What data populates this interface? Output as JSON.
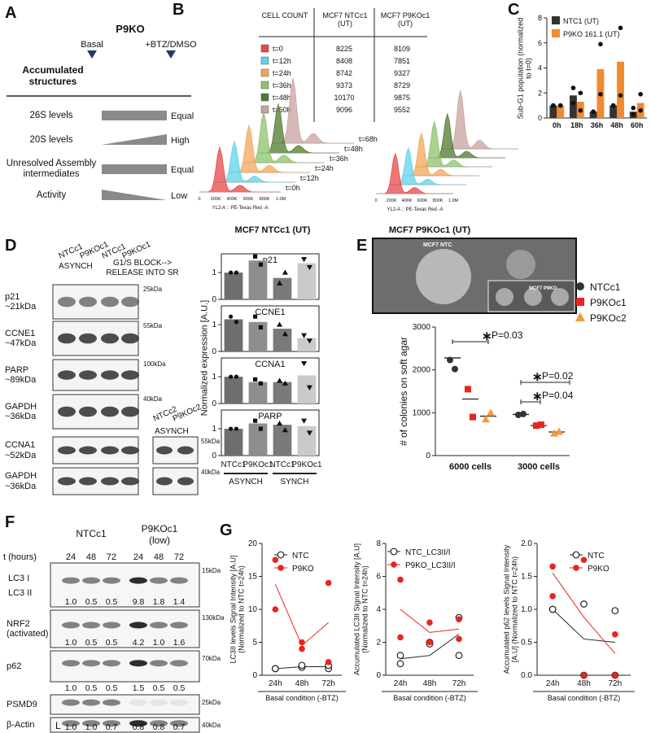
{
  "panel_a": {
    "letter": "A",
    "header": "P9KO",
    "columns": [
      "Basal",
      "+BTZ/DMSO"
    ],
    "row_header": "Accumulated structures",
    "rows": [
      {
        "label": "26S levels",
        "result": "Equal"
      },
      {
        "label": "20S levels",
        "result": "High"
      },
      {
        "label": "Unresolved Assembly intermediates",
        "result": "Equal"
      },
      {
        "label": "Activity",
        "result": "Low"
      }
    ]
  },
  "panel_b": {
    "letter": "B",
    "table": {
      "header": [
        "CELL COUNT",
        "MCF7 NTCc1 (UT)",
        "MCF7 P9KOc1 (UT)"
      ],
      "rows": [
        {
          "label": "t=0",
          "color": "#e8474a",
          "values": [
            8225,
            8109
          ]
        },
        {
          "label": "t=12h",
          "color": "#5fd3ea",
          "values": [
            8408,
            7851
          ]
        },
        {
          "label": "t=24h",
          "color": "#f2a65a",
          "values": [
            8742,
            9327
          ]
        },
        {
          "label": "t=36h",
          "color": "#8cc26a",
          "values": [
            9373,
            8729
          ]
        },
        {
          "label": "t=48h",
          "color": "#4f7a2e",
          "values": [
            10170,
            9875
          ]
        },
        {
          "label": "t=60h",
          "color": "#c9a3a0",
          "values": [
            9096,
            9552
          ]
        }
      ]
    },
    "histograms": {
      "labels": [
        "t=68h",
        "t=48h",
        "t=36h",
        "t=24h",
        "t=12h",
        "t=0h"
      ],
      "xticks": [
        "0",
        "200K",
        "400K",
        "600K",
        "800K",
        "1.0M"
      ],
      "x_label": "YL2-A :: PE-Texas Red -A",
      "titles": [
        "MCF7 NTCc1 (UT)",
        "MCF7 P9KOc1 (UT)"
      ]
    }
  },
  "panel_d_blots": {
    "letter": "D",
    "lanes": [
      "NTCc1",
      "P9KOc1",
      "NTCc1",
      "P9KOc1"
    ],
    "groups": [
      "ASYNCH",
      "G1/S BLOCK--> RELEASE INTO SR"
    ],
    "rows": [
      {
        "label": "p21 ~21kDa",
        "marker": "25kDa"
      },
      {
        "label": "CCNE1 ~47kDa",
        "marker": "55kDa"
      },
      {
        "label": "PARP ~89kDa",
        "marker": "100kDa"
      },
      {
        "label": "GAPDH ~36kDa",
        "marker": "40kDa"
      },
      {
        "label": "CCNA1 ~52kDa",
        "marker": "55kDa"
      },
      {
        "label": "GAPDH ~36kDa",
        "marker": "40kDa"
      }
    ],
    "side": {
      "lanes": [
        "NTCc2",
        "P9KOc2"
      ],
      "group": "ASYNCH"
    }
  },
  "panel_e_image": {
    "letter": "E",
    "labels": [
      "MCF7 NTC",
      "MCF7 P9KO"
    ]
  },
  "panel_f": {
    "letter": "F",
    "t_label": "t (hours)",
    "groups": [
      "NTCc1",
      "P9KOc1 (low)"
    ],
    "times": [
      "24",
      "48",
      "72",
      "24",
      "48",
      "72"
    ],
    "rows": [
      {
        "label": "LC3 I",
        "sub_label": "LC3 II",
        "marker": "15kDa",
        "quant": [
          "1.0",
          "0.5",
          "0.5",
          "9.8",
          "1.8",
          "1.4"
        ]
      },
      {
        "label": "NRF2 (activated)",
        "marker": "130kDa",
        "quant": [
          "1.0",
          "0.5",
          "0.5",
          "4.2",
          "1.0",
          "1.6"
        ]
      },
      {
        "label": "p62",
        "marker": "70kDa",
        "quant": [
          "1.0",
          "0.5",
          "0.5",
          "1.5",
          "0.5",
          "0.5"
        ]
      },
      {
        "label": "PSMD9",
        "marker": "25kDa"
      },
      {
        "label": "β-Actin",
        "marker": "40kDa",
        "lane_mark": "L",
        "quant": [
          "1.0",
          "1.0",
          "0.7",
          "0.8",
          "0.8",
          "0.7"
        ]
      }
    ]
  },
  "panel_g": {
    "letter": "G"
  },
  "chart_data": [
    {
      "type": "bar",
      "letter": "C",
      "y_label": "Sub-G1 population (normalized to t=0)",
      "categories": [
        "0h",
        "18h",
        "36h",
        "48h",
        "60h"
      ],
      "ylim": [
        0,
        8
      ],
      "yticks": [
        0,
        2,
        4,
        6,
        8
      ],
      "series": [
        {
          "name": "NTC1 (UT)",
          "color": "#333333",
          "values": [
            1,
            1.8,
            0.5,
            1,
            0.5
          ],
          "points": [
            [
              1,
              1
            ],
            [
              2.4,
              1.2
            ],
            [
              0.5,
              0.5
            ],
            [
              1,
              1
            ],
            [
              0.8,
              0.3
            ]
          ]
        },
        {
          "name": "P9KO 161.1 (UT)",
          "color": "#f28a2e",
          "values": [
            1,
            1.3,
            3.9,
            4.5,
            1.2
          ],
          "points": [
            [
              1,
              1
            ],
            [
              2,
              0.6
            ],
            [
              5.9,
              1.9
            ],
            [
              7.2,
              1.8
            ],
            [
              1.9,
              0.6
            ]
          ]
        }
      ]
    },
    {
      "type": "multibar",
      "y_label": "Normalized expression [A.U.]",
      "categories": [
        "NTCc1",
        "P9KOc1",
        "NTCc1",
        "P9KOc1"
      ],
      "groups": [
        "ASYNCH",
        "SYNCH"
      ],
      "colors": [
        "#6e6e6e",
        "#8e8e8e",
        "#7a7a7a",
        "#cacaca"
      ],
      "markers": [
        "circle",
        "square",
        "triangle",
        "triangle-down"
      ],
      "ylim": [
        0,
        1.7
      ],
      "yticks": [
        0,
        1
      ],
      "subplots": [
        {
          "title": "p21",
          "values": [
            1,
            1.45,
            0.8,
            1.35
          ],
          "points": [
            [
              1,
              1
            ],
            [
              1.6,
              1.3
            ],
            [
              0.6,
              1
            ],
            [
              1.5,
              1.2
            ]
          ]
        },
        {
          "title": "CCNE1",
          "values": [
            1.2,
            1.1,
            0.85,
            0.5
          ],
          "points": [
            [
              1.3,
              1.1
            ],
            [
              1.3,
              0.9
            ],
            [
              1,
              0.65
            ],
            [
              0.6,
              0.4
            ]
          ]
        },
        {
          "title": "CCNA1",
          "values": [
            1,
            0.8,
            0.8,
            1.05
          ],
          "points": [
            [
              1,
              1
            ],
            [
              0.9,
              0.75
            ],
            [
              0.85,
              0.75
            ],
            [
              1.5,
              0.6
            ]
          ]
        },
        {
          "title": "PARP",
          "values": [
            1,
            1.2,
            1.15,
            1.1
          ],
          "points": [
            [
              1,
              1
            ],
            [
              1.3,
              1
            ],
            [
              1.2,
              0.95
            ],
            [
              1.3,
              0.85
            ]
          ]
        }
      ]
    },
    {
      "type": "scatter",
      "y_label": "# of colonies on soft agar",
      "categories": [
        "6000 cells",
        "3000 cells"
      ],
      "ylim": [
        0,
        3000
      ],
      "yticks": [
        0,
        1000,
        2000,
        3000
      ],
      "series": [
        {
          "name": "NTCc1",
          "color": "#333333",
          "marker": "circle",
          "values": [
            2280,
            960
          ],
          "points": [
            [
              2230,
              2020
            ],
            [
              950,
              970
            ]
          ]
        },
        {
          "name": "P9KOc1",
          "color": "#e8251f",
          "marker": "square",
          "values": [
            1320,
            700
          ],
          "points": [
            [
              1550,
              900
            ],
            [
              700,
              720
            ]
          ]
        },
        {
          "name": "P9KOc2",
          "color": "#f29a3a",
          "marker": "triangle",
          "values": [
            920,
            550
          ],
          "points": [
            [
              850,
              1000
            ],
            [
              520,
              560
            ]
          ]
        }
      ],
      "annotations": [
        {
          "symbol": "∗",
          "label": "P=0.03"
        },
        {
          "symbol": "∗",
          "label": "P=0.02"
        },
        {
          "symbol": "∗",
          "label": "P=0.04"
        }
      ]
    },
    {
      "type": "line",
      "y_label": "LC3II levels Signal Intensity [A.U] (Normalized to NTC t=24h)",
      "x_label": "Basal condition (-BTZ)",
      "categories": [
        "24h",
        "48h",
        "72h"
      ],
      "ylim": [
        0,
        20
      ],
      "yticks": [
        0,
        5,
        10,
        15,
        20
      ],
      "series": [
        {
          "name": "NTC",
          "color": "#222222",
          "marker": "circle-open",
          "values": [
            1,
            1.3,
            1.3
          ],
          "points": [
            [
              1,
              1
            ],
            [
              1.2,
              1.5
            ],
            [
              1,
              1.5
            ]
          ]
        },
        {
          "name": "P9KO",
          "color": "#e8251f",
          "marker": "circle",
          "values": [
            13.8,
            4.5,
            8
          ],
          "points": [
            [
              17.5,
              10
            ],
            [
              5,
              4
            ],
            [
              14,
              2
            ]
          ]
        }
      ]
    },
    {
      "type": "line",
      "y_label": "Accumulated LC3II Signal Intensity [A.U] (Normalized to NTC t=24h)",
      "x_label": "Basal condition (-BTZ)",
      "categories": [
        "24h",
        "48h",
        "72h"
      ],
      "ylim": [
        0,
        8
      ],
      "yticks": [
        0,
        2,
        4,
        6,
        8
      ],
      "series": [
        {
          "name": "NTC_LC3II/I",
          "color": "#222222",
          "marker": "circle-open",
          "values": [
            1,
            1.2,
            2.5
          ],
          "points": [
            [
              0.7,
              1.2
            ],
            [
              2,
              1.9
            ],
            [
              3.5,
              1.2
            ]
          ]
        },
        {
          "name": "P9KO_LC3II/I",
          "color": "#e8251f",
          "marker": "circle",
          "values": [
            4,
            2.6,
            2.8
          ],
          "points": [
            [
              5.8,
              2.3
            ],
            [
              3.2,
              2
            ],
            [
              3.4,
              2.2
            ]
          ]
        }
      ]
    },
    {
      "type": "line",
      "y_label": "Accumulated p62 levels Signal Intensity [A.U] (Normalized to NTC t=24h)",
      "x_label": "Basal condition (-BTZ)",
      "categories": [
        "24h",
        "48h",
        "72h"
      ],
      "ylim": [
        0,
        2
      ],
      "yticks": [
        {
          "value": 0,
          "label": "0.0"
        },
        {
          "value": 0.5,
          "label": "0.5"
        },
        {
          "value": 1,
          "label": "1.0"
        },
        {
          "value": 1.5,
          "label": "1.5"
        },
        {
          "value": 2,
          "label": "2.0"
        }
      ],
      "series": [
        {
          "name": "NTC",
          "color": "#222222",
          "marker": "circle-open",
          "values": [
            1,
            0.55,
            0.5
          ],
          "points": [
            [
              1,
              1
            ],
            [
              1.08,
              0
            ],
            [
              0.98,
              0
            ]
          ]
        },
        {
          "name": "P9KO",
          "color": "#e8251f",
          "marker": "circle",
          "values": [
            1.55,
            0.88,
            0.33
          ],
          "points": [
            [
              1.65,
              1.2
            ],
            [
              1.75,
              0
            ],
            [
              0.62,
              0
            ]
          ]
        }
      ]
    }
  ]
}
